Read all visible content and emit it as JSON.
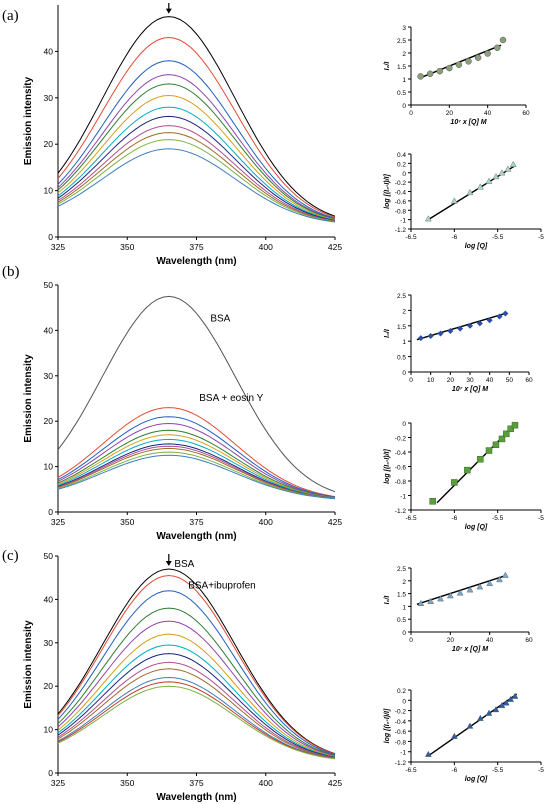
{
  "figure": {
    "panel_labels": [
      "(a)",
      "(b)",
      "(c)"
    ]
  },
  "chart_data": [
    {
      "id": "a-main",
      "type": "line",
      "panel": "(a)",
      "xlabel": "Wavelength (nm)",
      "ylabel": "Emission intensity",
      "xlim": [
        325,
        425
      ],
      "ylim": [
        0,
        50
      ],
      "xticks": [
        325,
        350,
        375,
        400,
        425
      ],
      "yticks": [
        0,
        10,
        20,
        30,
        40
      ],
      "peak_x": 365,
      "sigma": 24,
      "base": 2.5,
      "series_peaks": [
        47.5,
        43,
        38,
        35,
        33,
        30.5,
        28,
        26,
        24,
        22.5,
        21,
        19
      ],
      "series_colors": [
        "#000000",
        "#e34a33",
        "#1f5fbf",
        "#8e44ad",
        "#2e7d32",
        "#d4a017",
        "#00acc1",
        "#1a237e",
        "#b05090",
        "#9e6b2a",
        "#7cb342",
        "#3f7fbf"
      ],
      "annotations": [
        {
          "type": "arrow",
          "x": 365
        }
      ]
    },
    {
      "id": "a-inset-1",
      "type": "scatter",
      "panel": "(a)",
      "xlabel": "10⁷ x [Q] M",
      "ylabel": "I₀/I",
      "xlim": [
        0,
        60
      ],
      "ylim": [
        0,
        3
      ],
      "xticks": [
        0,
        20,
        40,
        60
      ],
      "yticks": [
        0,
        0.5,
        1,
        1.5,
        2,
        2.5,
        3
      ],
      "x": [
        5,
        10,
        15,
        20,
        25,
        30,
        35,
        40,
        45,
        48
      ],
      "y": [
        1.1,
        1.2,
        1.3,
        1.42,
        1.55,
        1.68,
        1.82,
        1.98,
        2.2,
        2.5
      ],
      "fit": [
        [
          5,
          1.05
        ],
        [
          47,
          2.3
        ]
      ],
      "marker_color": "#8aa07a",
      "marker": "circle"
    },
    {
      "id": "a-inset-2",
      "type": "scatter",
      "panel": "(a)",
      "xlabel": "log [Q]",
      "ylabel": "log [(I₀-I)/I]",
      "xlim": [
        -6.5,
        -5
      ],
      "ylim": [
        -1.2,
        0.4
      ],
      "xticks": [
        -6.5,
        -6,
        -5.5,
        -5
      ],
      "yticks": [
        -1.2,
        -1,
        -0.8,
        -0.6,
        -0.4,
        -0.2,
        0,
        0.2,
        0.4
      ],
      "x": [
        -6.3,
        -6.0,
        -5.82,
        -5.7,
        -5.6,
        -5.52,
        -5.45,
        -5.38,
        -5.32
      ],
      "y": [
        -0.98,
        -0.6,
        -0.42,
        -0.3,
        -0.18,
        -0.08,
        0.0,
        0.08,
        0.18
      ],
      "fit": [
        [
          -6.3,
          -1.0
        ],
        [
          -5.3,
          0.15
        ]
      ],
      "marker_color": "#a8d8c8",
      "marker": "triangle"
    },
    {
      "id": "b-main",
      "type": "line",
      "panel": "(b)",
      "xlabel": "Wavelength (nm)",
      "ylabel": "Emission intensity",
      "xlim": [
        325,
        425
      ],
      "ylim": [
        0,
        50
      ],
      "xticks": [
        325,
        350,
        375,
        400,
        425
      ],
      "yticks": [
        0,
        10,
        20,
        30,
        40,
        50
      ],
      "peak_x": 365,
      "sigma": 24,
      "base": 2.5,
      "series_peaks": [
        47.5,
        23,
        21,
        19.5,
        18,
        17,
        16,
        15,
        14.5,
        14,
        13.2,
        12.5
      ],
      "series_colors": [
        "#555555",
        "#e34a33",
        "#1f5fbf",
        "#8e44ad",
        "#2e7d32",
        "#d4a017",
        "#00acc1",
        "#1a237e",
        "#b05090",
        "#9e6b2a",
        "#7cb342",
        "#3f7fbf"
      ],
      "annotations": [
        {
          "type": "label",
          "text": "BSA",
          "x": 380,
          "y": 42
        },
        {
          "type": "label",
          "text": "BSA + eosin Y",
          "x": 376,
          "y": 24.5
        }
      ]
    },
    {
      "id": "b-inset-1",
      "type": "scatter",
      "panel": "(b)",
      "xlabel": "10⁷ x [Q] M",
      "ylabel": "I₀/I",
      "xlim": [
        0,
        60
      ],
      "ylim": [
        0,
        2.5
      ],
      "xticks": [
        0,
        10,
        20,
        30,
        40,
        50,
        60
      ],
      "yticks": [
        0,
        0.5,
        1,
        1.5,
        2,
        2.5
      ],
      "x": [
        5,
        10,
        15,
        20,
        25,
        30,
        35,
        40,
        45,
        48
      ],
      "y": [
        1.1,
        1.17,
        1.25,
        1.33,
        1.41,
        1.5,
        1.58,
        1.68,
        1.8,
        1.9
      ],
      "fit": [
        [
          3,
          1.05
        ],
        [
          48,
          1.9
        ]
      ],
      "marker_color": "#2b4fa8",
      "marker": "diamond"
    },
    {
      "id": "b-inset-2",
      "type": "scatter",
      "panel": "(b)",
      "xlabel": "log [Q]",
      "ylabel": "log [(I₀-I)/I]",
      "xlim": [
        -6.5,
        -5
      ],
      "ylim": [
        -1.2,
        0
      ],
      "xticks": [
        -6.5,
        -6,
        -5.5,
        -5
      ],
      "yticks": [
        -1.2,
        -1,
        -0.8,
        -0.6,
        -0.4,
        -0.2,
        0
      ],
      "x": [
        -6.25,
        -6.0,
        -5.85,
        -5.7,
        -5.6,
        -5.52,
        -5.45,
        -5.4,
        -5.35,
        -5.3
      ],
      "y": [
        -1.08,
        -0.82,
        -0.65,
        -0.5,
        -0.38,
        -0.3,
        -0.22,
        -0.15,
        -0.08,
        -0.03
      ],
      "fit": [
        [
          -6.2,
          -1.1
        ],
        [
          -5.3,
          -0.02
        ]
      ],
      "marker_color": "#5a9e3c",
      "marker": "square"
    },
    {
      "id": "c-main",
      "type": "line",
      "panel": "(c)",
      "xlabel": "Wavelength (nm)",
      "ylabel": "Emission intensity",
      "xlim": [
        325,
        425
      ],
      "ylim": [
        0,
        50
      ],
      "xticks": [
        325,
        350,
        375,
        400,
        425
      ],
      "yticks": [
        0,
        10,
        20,
        30,
        40,
        50
      ],
      "peak_x": 365,
      "sigma": 24,
      "base": 2.5,
      "series_peaks": [
        47,
        45.5,
        42,
        38,
        35,
        32,
        29.5,
        27.5,
        25.5,
        24,
        22,
        21,
        20
      ],
      "series_colors": [
        "#000000",
        "#e34a33",
        "#1f5fbf",
        "#2e7d32",
        "#8e44ad",
        "#d4a017",
        "#00acc1",
        "#1a237e",
        "#b05090",
        "#9e6b2a",
        "#3f7fbf",
        "#c0392b",
        "#7cb342"
      ],
      "annotations": [
        {
          "type": "arrow",
          "x": 365
        },
        {
          "type": "label",
          "text": "BSA",
          "x": 367,
          "y": 47.5
        },
        {
          "type": "label",
          "text": "BSA+ibuprofen",
          "x": 372,
          "y": 42.5
        }
      ]
    },
    {
      "id": "c-inset-1",
      "type": "scatter",
      "panel": "(c)",
      "xlabel": "10⁷ x [Q] M",
      "ylabel": "I₀/I",
      "xlim": [
        0,
        60
      ],
      "ylim": [
        0,
        2.5
      ],
      "xticks": [
        0,
        20,
        40,
        60
      ],
      "yticks": [
        0,
        0.5,
        1,
        1.5,
        2,
        2.5
      ],
      "x": [
        5,
        10,
        15,
        20,
        25,
        30,
        35,
        40,
        45,
        48
      ],
      "y": [
        1.12,
        1.2,
        1.3,
        1.42,
        1.53,
        1.65,
        1.77,
        1.9,
        2.05,
        2.22
      ],
      "fit": [
        [
          3,
          1.08
        ],
        [
          48,
          2.2
        ]
      ],
      "marker_color": "#7aa6cc",
      "marker": "triangle"
    },
    {
      "id": "c-inset-2",
      "type": "scatter",
      "panel": "(c)",
      "xlabel": "log [Q]",
      "ylabel": "log [(I₀-I)/I]",
      "xlim": [
        -6.5,
        -5
      ],
      "ylim": [
        -1.2,
        0.2
      ],
      "xticks": [
        -6.5,
        -6,
        -5.5,
        -5
      ],
      "yticks": [
        -1.2,
        -1,
        -0.8,
        -0.6,
        -0.4,
        -0.2,
        0,
        0.2
      ],
      "x": [
        -6.3,
        -6.0,
        -5.82,
        -5.7,
        -5.6,
        -5.52,
        -5.45,
        -5.4,
        -5.35,
        -5.3
      ],
      "y": [
        -1.05,
        -0.7,
        -0.5,
        -0.35,
        -0.25,
        -0.18,
        -0.1,
        -0.05,
        0.02,
        0.08
      ],
      "fit": [
        [
          -6.3,
          -1.08
        ],
        [
          -5.28,
          0.12
        ]
      ],
      "marker_color": "#2b5ea8",
      "marker": "triangle"
    }
  ]
}
